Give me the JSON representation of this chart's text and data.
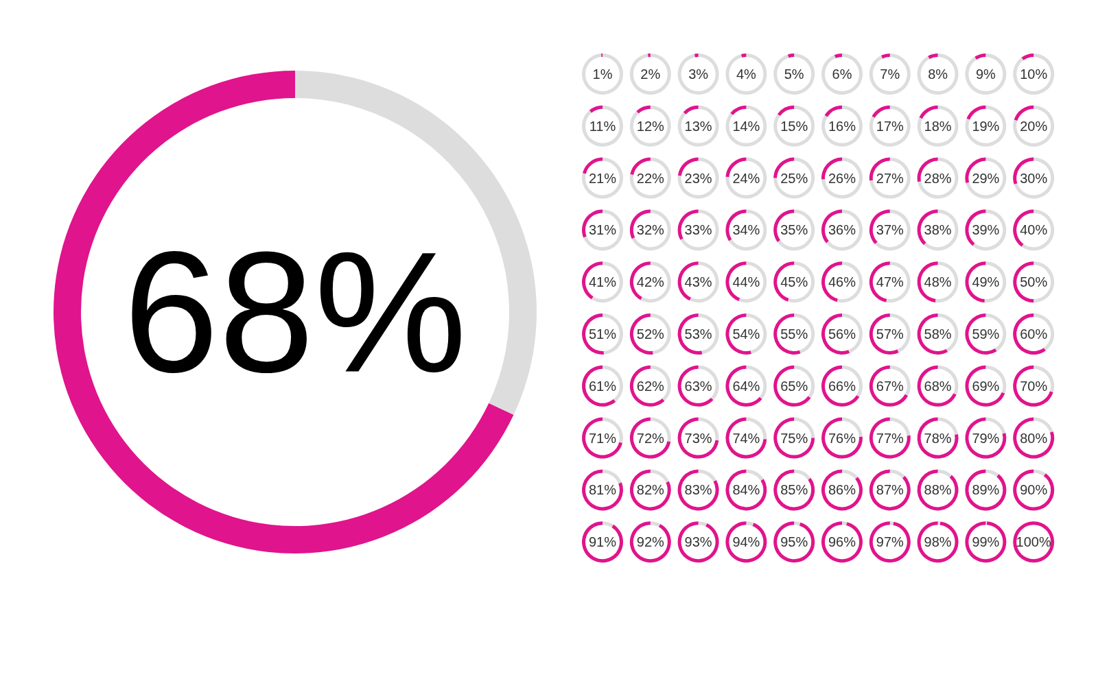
{
  "chart_data": [
    {
      "type": "donut",
      "categories": [
        null,
        null
      ],
      "values": [
        68,
        32
      ],
      "colors": [
        "#e0148c",
        "#dddddd"
      ],
      "value_labels": [
        "68%",
        null
      ]
    },
    {
      "type": "other",
      "values": [
        1,
        2,
        3,
        4,
        5,
        6,
        7,
        8,
        9,
        10,
        11,
        12,
        13,
        14,
        15,
        16,
        17,
        18,
        19,
        20,
        21,
        22,
        23,
        24,
        25,
        26,
        27,
        28,
        29,
        30,
        31,
        32,
        33,
        34,
        35,
        36,
        37,
        38,
        39,
        40,
        41,
        42,
        43,
        44,
        45,
        46,
        47,
        48,
        49,
        50,
        51,
        52,
        53,
        54,
        55,
        56,
        57,
        58,
        59,
        60,
        61,
        62,
        63,
        64,
        65,
        66,
        67,
        68,
        69,
        70,
        71,
        72,
        73,
        74,
        75,
        76,
        77,
        78,
        79,
        80,
        81,
        82,
        83,
        84,
        85,
        86,
        87,
        88,
        89,
        90,
        91,
        92,
        93,
        94,
        95,
        96,
        97,
        98,
        99,
        100
      ],
      "value_labels": [
        "1%",
        "2%",
        "3%",
        "4%",
        "5%",
        "6%",
        "7%",
        "8%",
        "9%",
        "10%",
        "11%",
        "12%",
        "13%",
        "14%",
        "15%",
        "16%",
        "17%",
        "18%",
        "19%",
        "20%",
        "21%",
        "22%",
        "23%",
        "24%",
        "25%",
        "26%",
        "27%",
        "28%",
        "29%",
        "30%",
        "31%",
        "32%",
        "33%",
        "34%",
        "35%",
        "36%",
        "37%",
        "38%",
        "39%",
        "40%",
        "41%",
        "42%",
        "43%",
        "44%",
        "45%",
        "46%",
        "47%",
        "48%",
        "49%",
        "50%",
        "51%",
        "52%",
        "53%",
        "54%",
        "55%",
        "56%",
        "57%",
        "58%",
        "59%",
        "60%",
        "61%",
        "62%",
        "63%",
        "64%",
        "65%",
        "66%",
        "67%",
        "68%",
        "69%",
        "70%",
        "71%",
        "72%",
        "73%",
        "74%",
        "75%",
        "76%",
        "77%",
        "78%",
        "79%",
        "80%",
        "81%",
        "82%",
        "83%",
        "84%",
        "85%",
        "86%",
        "87%",
        "88%",
        "89%",
        "90%",
        "91%",
        "92%",
        "93%",
        "94%",
        "95%",
        "96%",
        "97%",
        "98%",
        "99%",
        "100%"
      ],
      "color": "#e0148c"
    }
  ]
}
